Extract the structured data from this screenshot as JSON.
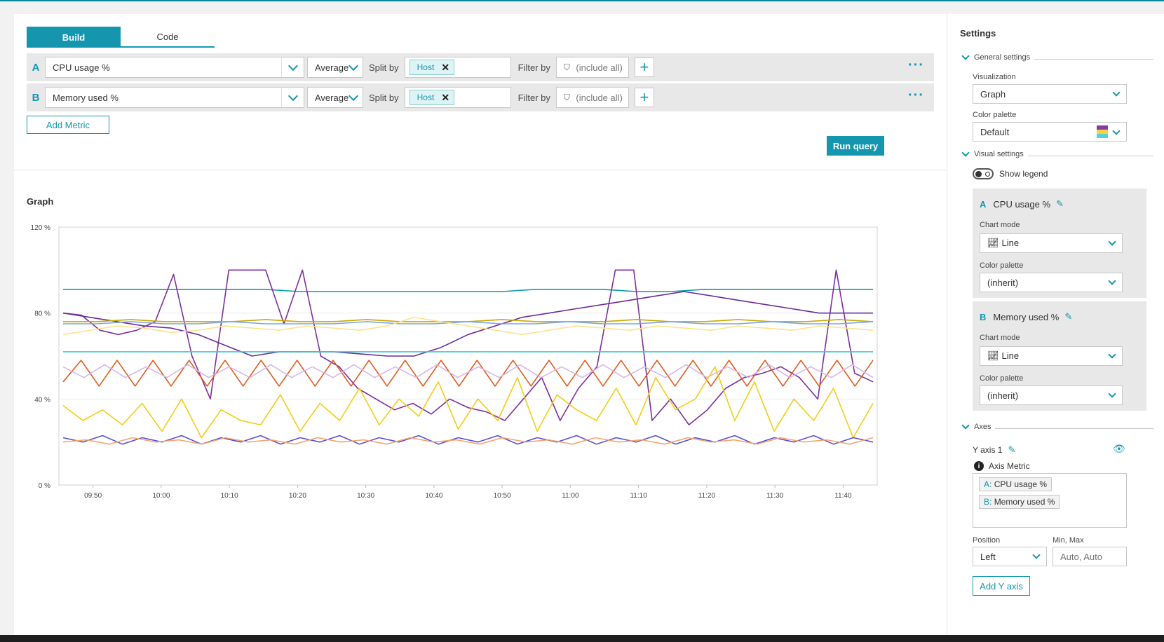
{
  "tabs": {
    "build": "Build",
    "code": "Code"
  },
  "queries": [
    {
      "letter": "A",
      "metric": "CPU usage %",
      "aggregation": "Average",
      "split_label": "Split by",
      "split_chip": "Host",
      "filter_label": "Filter by",
      "filter_value": "(include all)"
    },
    {
      "letter": "B",
      "metric": "Memory used %",
      "aggregation": "Average",
      "split_label": "Split by",
      "split_chip": "Host",
      "filter_label": "Filter by",
      "filter_value": "(include all)"
    }
  ],
  "buttons": {
    "add_metric": "Add Metric",
    "run_query": "Run query",
    "add_y_axis": "Add Y axis"
  },
  "graph": {
    "title": "Graph"
  },
  "chart_data": {
    "type": "line",
    "title": "Graph",
    "y_ticks": [
      "120 %",
      "80 %",
      "40 %",
      "0 %"
    ],
    "x_ticks": [
      "09:50",
      "10:00",
      "10:10",
      "10:20",
      "10:30",
      "10:40",
      "10:50",
      "11:00",
      "11:10",
      "11:20",
      "11:30",
      "11:40"
    ],
    "ylim": [
      0,
      120
    ],
    "x_range": [
      "09:45",
      "11:45"
    ],
    "grid": true,
    "legend": false,
    "series": [
      {
        "color": "#0f9ba8",
        "values": [
          91,
          91,
          91,
          91,
          91,
          91,
          91,
          90,
          90,
          90,
          90,
          90,
          90,
          90,
          91,
          91,
          91,
          90,
          90,
          91,
          91,
          91,
          91,
          91,
          91
        ]
      },
      {
        "color": "#7d2fa0",
        "values": [
          80,
          79,
          72,
          70,
          72,
          76,
          98,
          60,
          40,
          100,
          100,
          100,
          75,
          100,
          60,
          55,
          45,
          40,
          35,
          38,
          33,
          40,
          36,
          34,
          30,
          40,
          50,
          30,
          45,
          55,
          100,
          100,
          30,
          40,
          28,
          35,
          45,
          50,
          52,
          55,
          50,
          40,
          100,
          52,
          48
        ]
      },
      {
        "color": "#6c2a9e",
        "values": [
          80,
          78,
          76,
          74,
          73,
          70,
          65,
          60,
          62,
          62,
          62,
          61,
          60,
          60,
          64,
          70,
          74,
          78,
          80,
          82,
          84,
          86,
          88,
          90,
          88,
          86,
          84,
          82,
          80,
          80,
          80
        ]
      },
      {
        "color": "#c9a800",
        "values": [
          76,
          76,
          77,
          76,
          76,
          76,
          77,
          76,
          76,
          77,
          76,
          76,
          76,
          77,
          76,
          76,
          76,
          77,
          76,
          76,
          77,
          76,
          76,
          77,
          76
        ]
      },
      {
        "color": "#7aa7e8",
        "values": [
          75,
          75,
          76,
          75,
          75,
          76,
          75,
          75,
          75,
          76,
          75,
          75,
          76,
          75,
          75,
          76,
          75,
          75,
          76,
          75,
          75,
          76,
          75,
          75,
          76
        ]
      },
      {
        "color": "#fbe38c",
        "values": [
          70,
          72,
          74,
          73,
          71,
          72,
          74,
          73,
          72,
          74,
          73,
          72,
          74,
          78,
          76,
          74,
          72,
          70,
          72,
          74,
          73,
          72,
          74,
          73,
          72,
          74,
          73,
          72,
          74,
          73,
          72
        ]
      },
      {
        "color": "#41c8d4",
        "values": [
          62,
          62,
          62,
          62,
          62,
          62,
          62,
          62,
          62,
          62,
          62,
          62,
          62,
          62,
          62,
          62,
          62,
          62,
          62,
          62,
          62,
          62,
          62,
          62,
          62
        ]
      },
      {
        "color": "#e05a1c",
        "values": [
          48,
          58,
          46,
          58,
          46,
          58,
          46,
          58,
          46,
          58,
          46,
          58,
          46,
          58,
          46,
          58,
          46,
          58,
          46,
          58,
          46,
          58,
          46,
          58,
          46,
          58,
          46,
          58,
          46,
          58,
          46,
          58,
          46,
          58,
          46,
          58,
          46,
          58,
          46,
          58,
          46,
          58,
          46,
          58,
          46,
          58
        ]
      },
      {
        "color": "#d7b6ea",
        "values": [
          55,
          50,
          56,
          50,
          55,
          50,
          56,
          50,
          55,
          50,
          56,
          50,
          55,
          50,
          56,
          50,
          55,
          50,
          56,
          50,
          55,
          50,
          56,
          50,
          55,
          50,
          56,
          50,
          55,
          50,
          56,
          50,
          55,
          50,
          56,
          50,
          55,
          50,
          56,
          50
        ]
      },
      {
        "color": "#f2cd16",
        "values": [
          37,
          30,
          35,
          28,
          38,
          25,
          40,
          22,
          35,
          30,
          28,
          42,
          25,
          38,
          30,
          45,
          28,
          40,
          32,
          48,
          26,
          40,
          30,
          50,
          25,
          42,
          35,
          30,
          45,
          28,
          50,
          35,
          40,
          55,
          30,
          48,
          25,
          40,
          30,
          45,
          22,
          38
        ]
      },
      {
        "color": "#5b4fd0",
        "values": [
          22,
          20,
          23,
          19,
          22,
          20,
          23,
          19,
          22,
          20,
          23,
          19,
          22,
          20,
          23,
          19,
          22,
          20,
          23,
          19,
          22,
          20,
          23,
          19,
          22,
          20,
          23,
          19,
          22,
          20,
          23,
          19,
          22,
          20,
          23,
          19,
          22,
          20,
          23,
          19,
          22,
          20
        ]
      },
      {
        "color": "#f4a66f",
        "values": [
          20,
          21,
          19,
          22,
          20,
          21,
          19,
          22,
          20,
          21,
          19,
          22,
          20,
          21,
          19,
          22,
          20,
          21,
          19,
          22,
          20,
          21,
          19,
          22,
          20,
          21,
          19,
          22,
          20,
          21,
          19,
          22,
          20,
          21,
          19,
          22
        ]
      }
    ]
  },
  "settings": {
    "title": "Settings",
    "general": "General settings",
    "visualization_label": "Visualization",
    "visualization_value": "Graph",
    "color_palette_label": "Color palette",
    "color_palette_value": "Default",
    "visual": "Visual settings",
    "show_legend": "Show legend",
    "metric_a": {
      "letter": "A",
      "name": "CPU usage %",
      "chart_mode_label": "Chart mode",
      "chart_mode": "Line",
      "palette_label": "Color palette",
      "palette": "(inherit)"
    },
    "metric_b": {
      "letter": "B",
      "name": "Memory used %",
      "chart_mode_label": "Chart mode",
      "chart_mode": "Line",
      "palette_label": "Color palette",
      "palette": "(inherit)"
    },
    "axes": "Axes",
    "y_axis_title": "Y axis 1",
    "axis_metric_label": "Axis Metric",
    "axis_tags": [
      {
        "letter": "A:",
        "name": "CPU usage %"
      },
      {
        "letter": "B:",
        "name": "Memory used %"
      }
    ],
    "position_label": "Position",
    "position_value": "Left",
    "minmax_label": "Min, Max",
    "minmax_placeholder": "Auto, Auto"
  },
  "colors": {
    "accent": "#1497ae"
  }
}
